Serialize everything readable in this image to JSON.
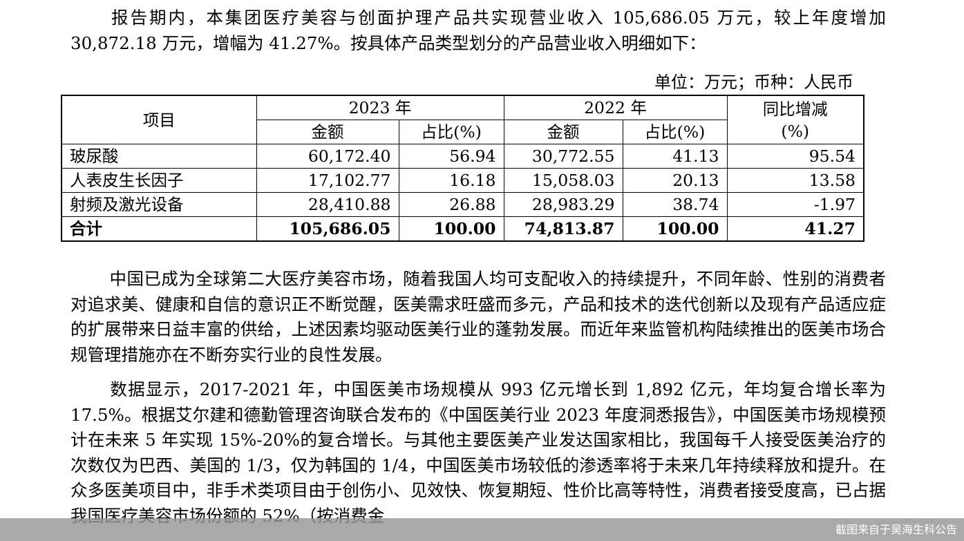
{
  "intro": "报告期内，本集团医疗美容与创面护理产品共实现营业收入 105,686.05 万元，较上年度增加 30,872.18 万元，增幅为 41.27%。按具体产品类型划分的产品营业收入明细如下：",
  "unit": "单位：万元；币种：人民币",
  "table": {
    "col_item": "项目",
    "year_2023": "2023 年",
    "year_2022": "2022 年",
    "col_change_line1": "同比增减",
    "col_change_line2": "(%)",
    "col_amount": "金额",
    "col_share": "占比(%)",
    "rows": [
      {
        "name": "玻尿酸",
        "amt2023": "60,172.40",
        "pct2023": "56.94",
        "amt2022": "30,772.55",
        "pct2022": "41.13",
        "change": "95.54"
      },
      {
        "name": "人表皮生长因子",
        "amt2023": "17,102.77",
        "pct2023": "16.18",
        "amt2022": "15,058.03",
        "pct2022": "20.13",
        "change": "13.58"
      },
      {
        "name": "射频及激光设备",
        "amt2023": "28,410.88",
        "pct2023": "26.88",
        "amt2022": "28,983.29",
        "pct2022": "38.74",
        "change": "-1.97"
      }
    ],
    "total": {
      "name": "合计",
      "amt2023": "105,686.05",
      "pct2023": "100.00",
      "amt2022": "74,813.87",
      "pct2022": "100.00",
      "change": "41.27"
    }
  },
  "para2": "中国已成为全球第二大医疗美容市场，随着我国人均可支配收入的持续提升，不同年龄、性别的消费者对追求美、健康和自信的意识正不断觉醒，医美需求旺盛而多元，产品和技术的迭代创新以及现有产品适应症的扩展带来日益丰富的供给，上述因素均驱动医美行业的蓬勃发展。而近年来监管机构陆续推出的医美市场合规管理措施亦在不断夯实行业的良性发展。",
  "para3": "数据显示，2017-2021 年，中国医美市场规模从 993 亿元增长到 1,892 亿元，年均复合增长率为 17.5%。根据艾尔建和德勤管理咨询联合发布的《中国医美行业 2023 年度洞悉报告》，中国医美市场规模预计在未来 5 年实现 15%-20%的复合增长。与其他主要医美产业发达国家相比，我国每千人接受医美治疗的次数仅为巴西、美国的 1/3，仅为韩国的 1/4，中国医美市场较低的渗透率将于未来几年持续释放和提升。在众多医美项目中，非手术类项目由于创伤小、见效快、恢复期短、性价比高等特性，消费者接受度高，已占据我国医疗美容市场份额的 52%（按消费金",
  "footer": "截图来自于昊海生科公告"
}
